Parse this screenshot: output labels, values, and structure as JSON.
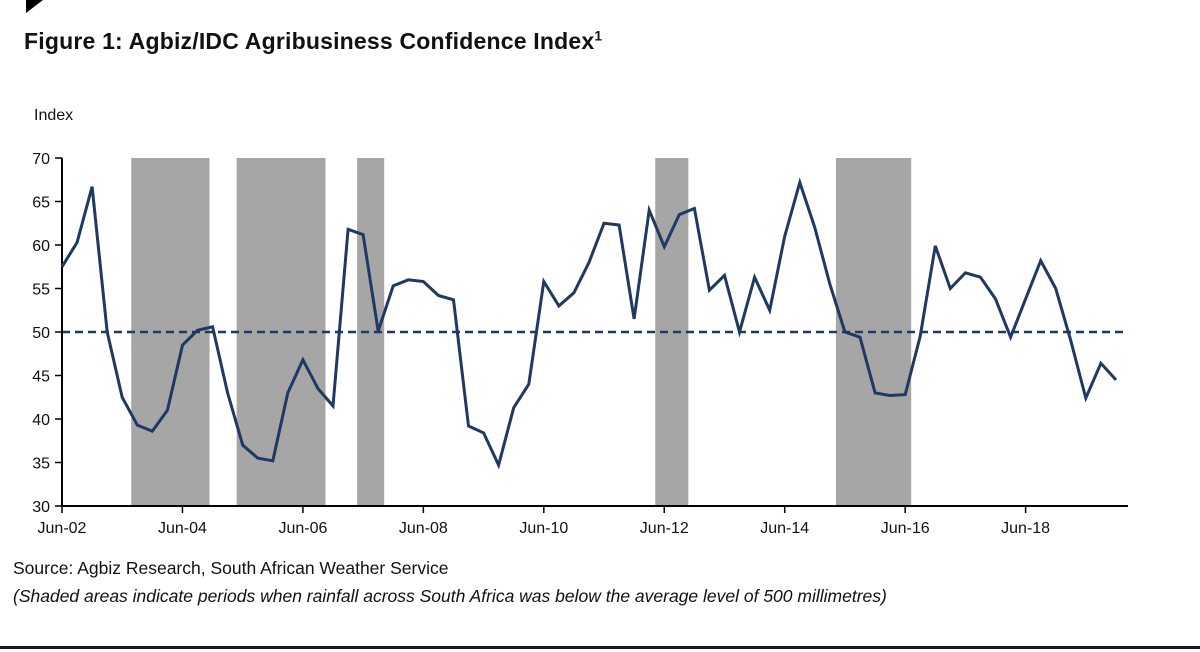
{
  "page": {
    "title_main": "Figure 1: Agbiz/IDC Agribusiness Confidence Index",
    "title_superscript": "1",
    "source_line": "Source: Agbiz Research, South African Weather Service",
    "note_line": "(Shaded areas indicate periods when rainfall across South Africa was below the average level of 500 millimetres)"
  },
  "chart_data": {
    "type": "line",
    "title": "Figure 1: Agbiz/IDC Agribusiness Confidence Index",
    "ylabel": "Index",
    "xlabel": "",
    "ylim": [
      30,
      70
    ],
    "ytick_step": 5,
    "grid": false,
    "legend": "none",
    "line_color": "#1f3864",
    "band_color": "#a6a6a6",
    "axis_color": "#000000",
    "reference_line": {
      "value": 50,
      "style": "dashed",
      "color": "#1f3864"
    },
    "x_tick_labels": [
      "Jun-02",
      "Jun-04",
      "Jun-06",
      "Jun-08",
      "Jun-10",
      "Jun-12",
      "Jun-14",
      "Jun-16",
      "Jun-18"
    ],
    "x_tick_indices": [
      0,
      8,
      16,
      24,
      32,
      40,
      48,
      56,
      64
    ],
    "xmax_index": 70.8,
    "x": [
      "Jun-02",
      "Sep-02",
      "Dec-02",
      "Mar-03",
      "Jun-03",
      "Sep-03",
      "Dec-03",
      "Mar-04",
      "Jun-04",
      "Sep-04",
      "Dec-04",
      "Mar-05",
      "Jun-05",
      "Sep-05",
      "Dec-05",
      "Mar-06",
      "Jun-06",
      "Sep-06",
      "Dec-06",
      "Mar-07",
      "Jun-07",
      "Sep-07",
      "Dec-07",
      "Mar-08",
      "Jun-08",
      "Sep-08",
      "Dec-08",
      "Mar-09",
      "Jun-09",
      "Sep-09",
      "Dec-09",
      "Mar-10",
      "Jun-10",
      "Sep-10",
      "Dec-10",
      "Mar-11",
      "Jun-11",
      "Sep-11",
      "Dec-11",
      "Mar-12",
      "Jun-12",
      "Sep-12",
      "Dec-12",
      "Mar-13",
      "Jun-13",
      "Sep-13",
      "Dec-13",
      "Mar-14",
      "Jun-14",
      "Sep-14",
      "Dec-14",
      "Mar-15",
      "Jun-15",
      "Sep-15",
      "Dec-15",
      "Mar-16",
      "Jun-16",
      "Sep-16",
      "Dec-16",
      "Mar-17",
      "Jun-17",
      "Sep-17",
      "Dec-17",
      "Mar-18",
      "Jun-18",
      "Sep-18",
      "Dec-18",
      "Mar-19",
      "Jun-19",
      "Sep-19",
      "Dec-19"
    ],
    "values": [
      57.5,
      60.3,
      66.7,
      50.0,
      42.5,
      39.3,
      38.6,
      41.0,
      48.5,
      50.2,
      50.6,
      43.0,
      37.0,
      35.5,
      35.2,
      43.0,
      46.8,
      43.5,
      41.5,
      61.8,
      61.2,
      50.1,
      55.3,
      56.0,
      55.8,
      54.2,
      53.7,
      39.2,
      38.4,
      34.7,
      41.3,
      44.0,
      55.8,
      53.0,
      54.5,
      58.0,
      62.5,
      62.3,
      51.5,
      64.0,
      59.8,
      63.5,
      64.2,
      54.8,
      56.5,
      50.0,
      56.3,
      52.5,
      61.0,
      67.2,
      62.0,
      55.5,
      50.0,
      49.4,
      43.0,
      42.7,
      42.8,
      49.5,
      59.9,
      55.0,
      56.8,
      56.3,
      53.8,
      49.4,
      53.8,
      58.2,
      55.0,
      49.0,
      42.4,
      46.4,
      44.5
    ],
    "shaded_bands": [
      {
        "from_index": 4.6,
        "to_index": 9.8
      },
      {
        "from_index": 11.6,
        "to_index": 17.5
      },
      {
        "from_index": 19.6,
        "to_index": 21.4
      },
      {
        "from_index": 39.4,
        "to_index": 41.6
      },
      {
        "from_index": 51.4,
        "to_index": 56.4
      }
    ]
  }
}
